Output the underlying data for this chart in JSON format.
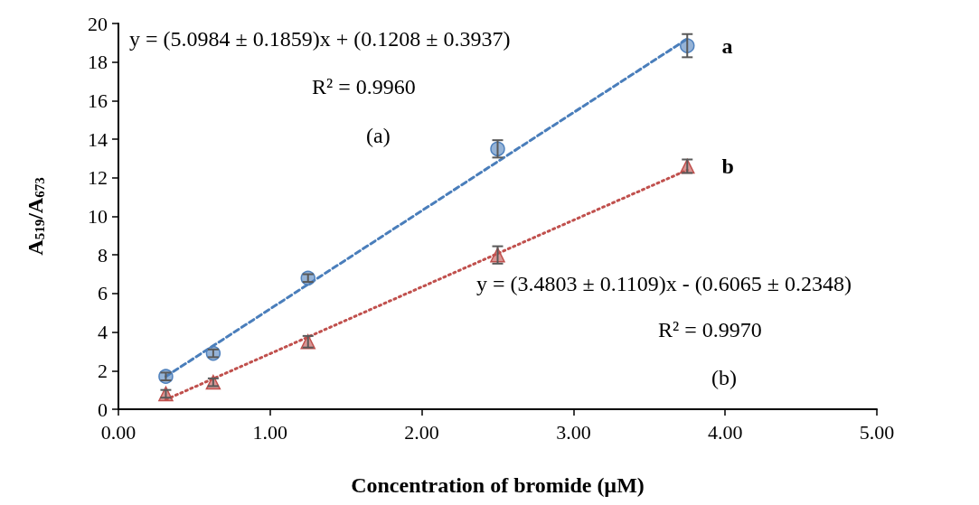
{
  "chart_data": {
    "type": "scatter",
    "xlabel": "Concentration of bromide (µM)",
    "ylabel": "A$_{519}$/A$_{673}$",
    "xlim": [
      0,
      5
    ],
    "xticks": [
      {
        "value": 0,
        "label": "0.00"
      },
      {
        "value": 1,
        "label": "1.00"
      },
      {
        "value": 2,
        "label": "2.00"
      },
      {
        "value": 3,
        "label": "3.00"
      },
      {
        "value": 4,
        "label": "4.00"
      },
      {
        "value": 5,
        "label": "5.00"
      }
    ],
    "ylim": [
      0,
      20
    ],
    "yticks": [
      0,
      2,
      4,
      6,
      8,
      10,
      12,
      14,
      16,
      18,
      20
    ],
    "grid": false,
    "legend": false,
    "series": [
      {
        "name": "a",
        "marker": "circle",
        "color": "#4f81bd",
        "x": [
          0.3125,
          0.625,
          1.25,
          2.5,
          3.75
        ],
        "values": [
          1.7,
          2.9,
          6.8,
          13.5,
          18.85
        ],
        "errors": [
          0.2,
          0.2,
          0.2,
          0.45,
          0.6
        ]
      },
      {
        "name": "b",
        "marker": "triangle",
        "color": "#c0504d",
        "x": [
          0.3125,
          0.625,
          1.25,
          2.5,
          3.75
        ],
        "values": [
          0.8,
          1.4,
          3.5,
          8.0,
          12.6
        ],
        "errors": [
          0.2,
          0.2,
          0.3,
          0.45,
          0.35
        ]
      },
      {
        "type": "line",
        "marker": "none",
        "line_style": "dashed",
        "color": "#4a7ebb",
        "x": [
          0.3125,
          3.75
        ],
        "values": [
          1.7,
          19.2
        ]
      },
      {
        "type": "line",
        "marker": "none",
        "line_style": "dotted",
        "color": "#c0504d",
        "x": [
          0.3125,
          3.75
        ],
        "values": [
          0.5,
          12.4
        ]
      }
    ],
    "annotations": [
      "y = (5.0984 ± 0.1859)x + (0.1208 ± 0.3937)",
      "R² = 0.9960",
      "(a)",
      "y = (3.4803 ± 0.1109)x - (0.6065 ± 0.2348)",
      "R² = 0.9970",
      "(b)"
    ]
  }
}
